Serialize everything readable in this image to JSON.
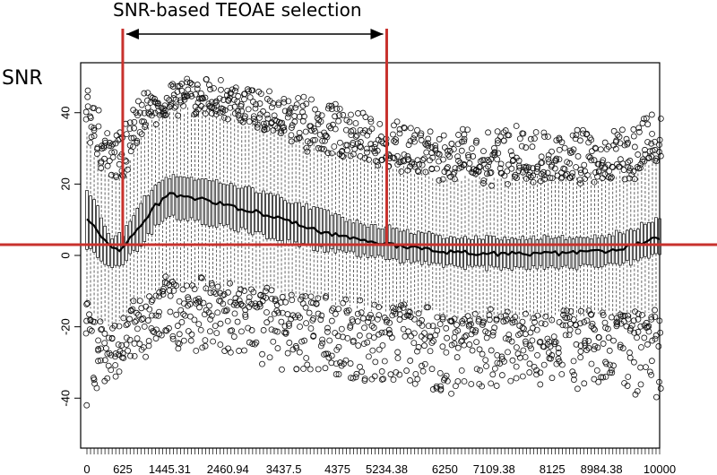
{
  "chart_data": {
    "type": "boxplot",
    "title": "",
    "annotation": "SNR-based TEOAE selection",
    "ylabel": "SNR",
    "xlabel": "",
    "xlim": [
      0,
      10000
    ],
    "ylim": [
      -54,
      54
    ],
    "y_ticks": [
      -40,
      -20,
      0,
      20,
      40
    ],
    "x_tick_labels": [
      {
        "value": 0,
        "label": "0"
      },
      {
        "value": 625,
        "label": "625"
      },
      {
        "value": 1445.31,
        "label": "1445.31"
      },
      {
        "value": 2460.94,
        "label": "2460.94"
      },
      {
        "value": 3437.5,
        "label": "3437.5"
      },
      {
        "value": 4375,
        "label": "4375"
      },
      {
        "value": 5234.38,
        "label": "5234.38"
      },
      {
        "value": 6250,
        "label": "6250"
      },
      {
        "value": 7109.38,
        "label": "7109.38"
      },
      {
        "value": 8125,
        "label": "8125"
      },
      {
        "value": 8984.38,
        "label": "8984.38"
      },
      {
        "value": 10000,
        "label": "10000"
      }
    ],
    "threshold_y": 3,
    "selection_range": [
      625,
      5234.38
    ],
    "profile": {
      "x": [
        0,
        150,
        300,
        450,
        625,
        900,
        1200,
        1445.31,
        1800,
        2460.94,
        3000,
        3437.5,
        4000,
        4375,
        4800,
        5234.38,
        6000,
        6250,
        7000,
        7109.38,
        8000,
        8125,
        8984.38,
        9500,
        10000
      ],
      "median": [
        10,
        8,
        4,
        1.5,
        2,
        8,
        14,
        17,
        16.5,
        14,
        12,
        10,
        7,
        5.5,
        4,
        3,
        1.5,
        1,
        0.5,
        0.5,
        0.5,
        0.5,
        1,
        2.5,
        5
      ],
      "q1": [
        2,
        0,
        -2,
        -3,
        -2,
        2,
        8,
        11,
        10,
        8,
        6,
        4,
        2,
        1,
        0,
        -1,
        -2.5,
        -3,
        -3.5,
        -3.5,
        -3.5,
        -3.5,
        -3,
        -2,
        0
      ],
      "q3": [
        18,
        15,
        9,
        5,
        6,
        14,
        20,
        22,
        22,
        20,
        18,
        16,
        13,
        11,
        9,
        8,
        6,
        5.5,
        5,
        5,
        5,
        5,
        5.5,
        7,
        11
      ],
      "whisker_low": [
        -14,
        -18,
        -19,
        -20,
        -19,
        -13,
        -9,
        -8,
        -8,
        -9,
        -10,
        -11,
        -12,
        -13,
        -14,
        -15,
        -16,
        -17,
        -17,
        -17,
        -17,
        -17,
        -17,
        -17,
        -16
      ],
      "whisker_high": [
        34,
        28,
        24,
        22,
        23,
        33,
        39,
        41,
        41,
        39,
        37,
        34,
        31,
        29,
        27,
        25,
        23,
        22,
        22,
        22,
        22,
        22,
        22,
        23,
        27
      ],
      "outlier_low": [
        -45,
        -40,
        -37,
        -35,
        -32,
        -28,
        -26,
        -25,
        -26,
        -28,
        -30,
        -31,
        -33,
        -34,
        -35,
        -36,
        -37,
        -38,
        -38,
        -38,
        -38,
        -38,
        -38,
        -38,
        -40
      ],
      "outlier_high": [
        50,
        42,
        36,
        32,
        35,
        44,
        49,
        50,
        50,
        49,
        47,
        45,
        43,
        42,
        40,
        38,
        36,
        35,
        35,
        35,
        35,
        35,
        35,
        36,
        42
      ]
    },
    "grid": false,
    "legend": "none"
  }
}
